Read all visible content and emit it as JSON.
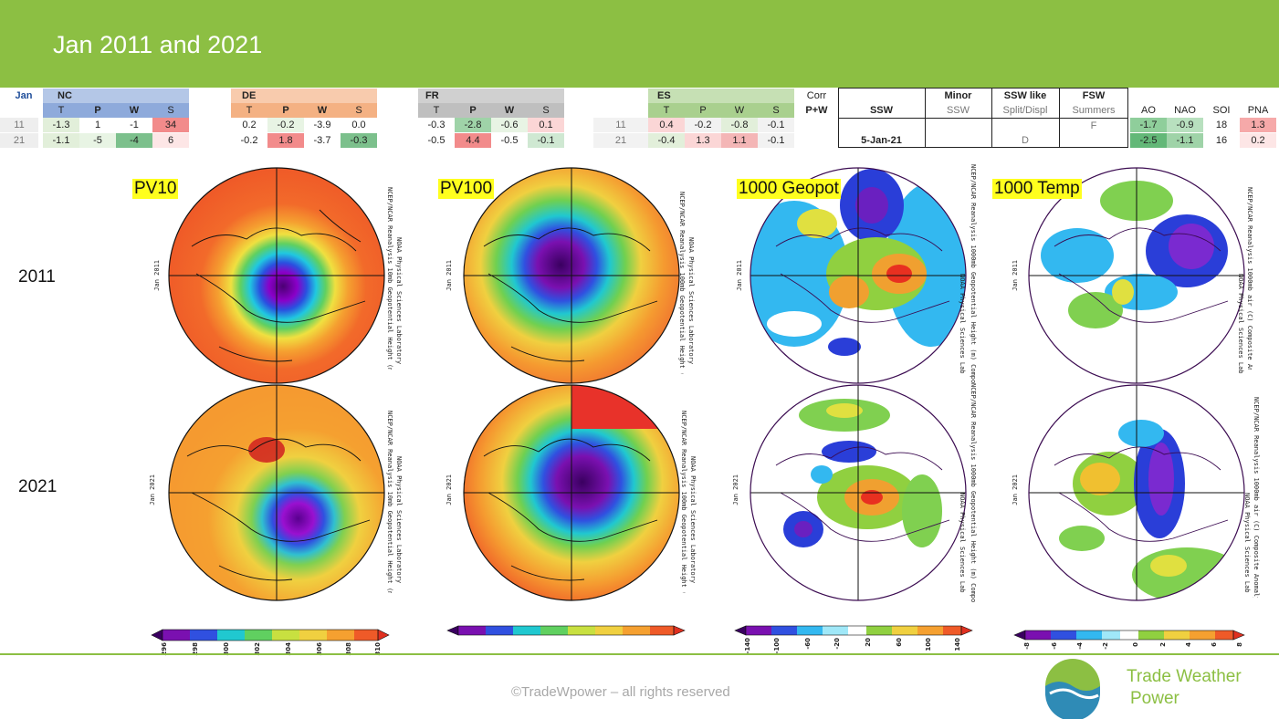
{
  "header": {
    "title": "Jan 2011 and 2021"
  },
  "footer": {
    "copyright": "©TradeWpower – all rights reserved"
  },
  "logo": {
    "line1": "Trade Weather",
    "line2": "Power",
    "colors": {
      "green": "#8cbf43",
      "blue": "#2f8bb6"
    }
  },
  "row_labels": {
    "r2011": "2011",
    "r2021": "2021"
  },
  "tables": {
    "jan_label": "Jan",
    "nc": {
      "title": "NC",
      "cols": [
        "T",
        "P",
        "W",
        "S"
      ],
      "rows": [
        {
          "year": "11",
          "vals": [
            "-1.3",
            "1",
            "-1",
            "34"
          ]
        },
        {
          "year": "21",
          "vals": [
            "-1.1",
            "-5",
            "-4",
            "6"
          ]
        }
      ]
    },
    "de": {
      "title": "DE",
      "cols": [
        "T",
        "P",
        "W",
        "S"
      ],
      "rows": [
        {
          "vals": [
            "0.2",
            "-0.2",
            "-3.9",
            "0.0"
          ]
        },
        {
          "vals": [
            "-0.2",
            "1.8",
            "-3.7",
            "-0.3"
          ]
        }
      ]
    },
    "fr": {
      "title": "FR",
      "cols": [
        "T",
        "P",
        "W",
        "S"
      ],
      "rows": [
        {
          "vals": [
            "-0.3",
            "-2.8",
            "-0.6",
            "0.1"
          ]
        },
        {
          "vals": [
            "-0.5",
            "4.4",
            "-0.5",
            "-0.1"
          ]
        }
      ]
    },
    "es": {
      "title": "ES",
      "cols": [
        "T",
        "P",
        "W",
        "S"
      ],
      "rows": [
        {
          "year": "11",
          "vals": [
            "0.4",
            "-0.2",
            "-0.8",
            "-0.1"
          ]
        },
        {
          "year": "21",
          "vals": [
            "-0.4",
            "1.3",
            "1.1",
            "-0.1"
          ]
        }
      ]
    },
    "corr": {
      "line1": "Corr",
      "line2": "P+W"
    },
    "ssw": {
      "header": "SSW",
      "minor_top": "Minor",
      "minor_bot": "SSW",
      "like_top": "SSW like",
      "like_bot": "Split/Displ",
      "fsw_top": "FSW",
      "fsw_bot": "Summers",
      "val_2011_fsw": "F",
      "val_2021_ssw": "5-Jan-21",
      "val_2021_like": "D"
    },
    "idx": {
      "cols": [
        "AO",
        "NAO",
        "SOI",
        "PNA"
      ],
      "rows": [
        [
          "-1.7",
          "-0.9",
          "18",
          "1.3"
        ],
        [
          "-2.5",
          "-1.1",
          "16",
          "0.2"
        ]
      ]
    }
  },
  "maps": {
    "labels": {
      "pv10": "PV10",
      "pv100": "PV100",
      "geopot": "1000 Geopot",
      "temp": "1000 Temp"
    },
    "side": {
      "jan2011": "Jan 2011",
      "jan2021": "Jan 2021",
      "pv10": "NCEP/NCAR Reanalysis 10mb Geopotential Height (m) Composite Mean",
      "pv100": "NCEP/NCAR Reanalysis 100mb Geopotential Height (m) Composite Mean",
      "geopot": "NCEP/NCAR Reanalysis 1000mb Geopotential Height (m) Composite Anomaly 1991-2020 climo",
      "temp": "NCEP/NCAR Reanalysis 1000mb air (C) Composite Anomaly 1991-2020 climo",
      "lab": "NOAA Physical Sciences Laboratory"
    }
  },
  "colorbars": {
    "pv10": [
      "296",
      "298",
      "300",
      "302",
      "304",
      "306",
      "308",
      "310"
    ],
    "geopot": [
      "-140",
      "-100",
      "-60",
      "-20",
      "20",
      "60",
      "100",
      "140"
    ],
    "temp": [
      "-8",
      "-6",
      "-4",
      "-2",
      "0",
      "2",
      "4",
      "6",
      "8"
    ]
  }
}
